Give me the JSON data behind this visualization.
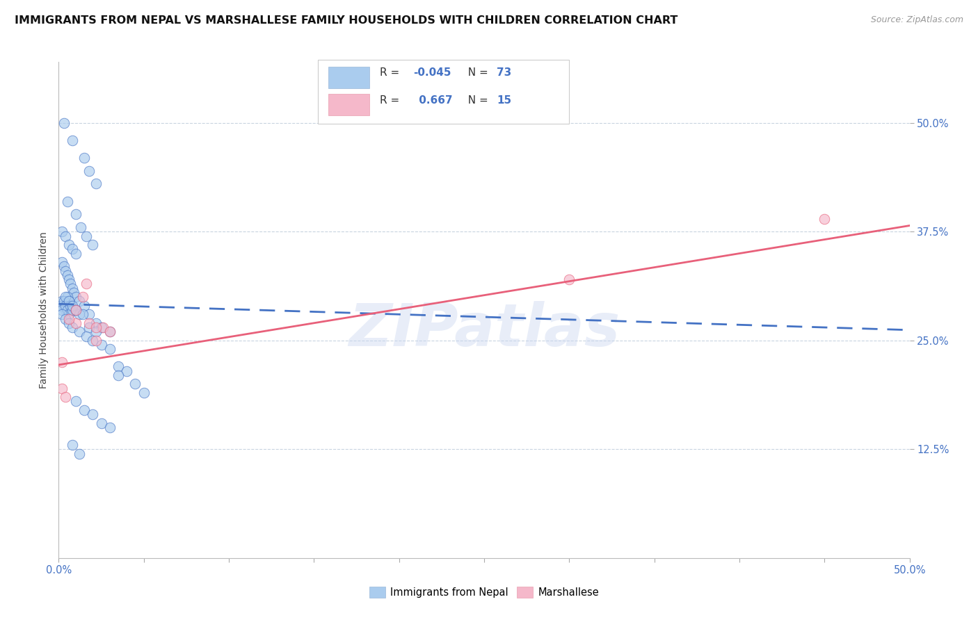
{
  "title": "IMMIGRANTS FROM NEPAL VS MARSHALLESE FAMILY HOUSEHOLDS WITH CHILDREN CORRELATION CHART",
  "source": "Source: ZipAtlas.com",
  "ylabel": "Family Households with Children",
  "ytick_labels": [
    "50.0%",
    "37.5%",
    "25.0%",
    "12.5%"
  ],
  "ytick_values": [
    0.5,
    0.375,
    0.25,
    0.125
  ],
  "xlim": [
    0.0,
    0.5
  ],
  "ylim": [
    0.0,
    0.57
  ],
  "legend_label1": "Immigrants from Nepal",
  "legend_label2": "Marshallese",
  "r1_text": "-0.045",
  "n1_text": "73",
  "r2_text": "0.667",
  "n2_text": "15",
  "color_blue": "#aaccee",
  "color_pink": "#f5b8ca",
  "line_blue": "#4472c4",
  "line_pink": "#e8607a",
  "nepal_x": [
    0.003,
    0.008,
    0.015,
    0.018,
    0.022,
    0.005,
    0.01,
    0.013,
    0.016,
    0.02,
    0.002,
    0.004,
    0.006,
    0.008,
    0.01,
    0.002,
    0.003,
    0.004,
    0.005,
    0.006,
    0.007,
    0.008,
    0.009,
    0.01,
    0.012,
    0.002,
    0.003,
    0.004,
    0.005,
    0.006,
    0.001,
    0.002,
    0.003,
    0.004,
    0.005,
    0.006,
    0.007,
    0.008,
    0.01,
    0.012,
    0.015,
    0.018,
    0.022,
    0.025,
    0.03,
    0.004,
    0.006,
    0.008,
    0.01,
    0.014,
    0.018,
    0.022,
    0.002,
    0.004,
    0.006,
    0.008,
    0.012,
    0.016,
    0.02,
    0.025,
    0.03,
    0.035,
    0.04,
    0.045,
    0.05,
    0.01,
    0.015,
    0.02,
    0.025,
    0.03,
    0.008,
    0.012,
    0.035
  ],
  "nepal_y": [
    0.5,
    0.48,
    0.46,
    0.445,
    0.43,
    0.41,
    0.395,
    0.38,
    0.37,
    0.36,
    0.375,
    0.37,
    0.36,
    0.355,
    0.35,
    0.34,
    0.335,
    0.33,
    0.325,
    0.32,
    0.315,
    0.31,
    0.305,
    0.3,
    0.295,
    0.295,
    0.29,
    0.285,
    0.3,
    0.295,
    0.29,
    0.285,
    0.295,
    0.29,
    0.285,
    0.28,
    0.29,
    0.285,
    0.285,
    0.28,
    0.29,
    0.28,
    0.27,
    0.265,
    0.26,
    0.3,
    0.295,
    0.29,
    0.285,
    0.28,
    0.265,
    0.26,
    0.28,
    0.275,
    0.27,
    0.265,
    0.26,
    0.255,
    0.25,
    0.245,
    0.24,
    0.22,
    0.215,
    0.2,
    0.19,
    0.18,
    0.17,
    0.165,
    0.155,
    0.15,
    0.13,
    0.12,
    0.21
  ],
  "marsh_x": [
    0.002,
    0.004,
    0.01,
    0.014,
    0.018,
    0.022,
    0.026,
    0.002,
    0.006,
    0.01,
    0.016,
    0.022,
    0.03,
    0.3,
    0.45
  ],
  "marsh_y": [
    0.195,
    0.185,
    0.27,
    0.3,
    0.27,
    0.25,
    0.265,
    0.225,
    0.275,
    0.285,
    0.315,
    0.265,
    0.26,
    0.32,
    0.39
  ],
  "nepal_line_x0": 0.0,
  "nepal_line_x1": 0.5,
  "nepal_line_y0": 0.292,
  "nepal_line_y1": 0.262,
  "marsh_line_x0": 0.0,
  "marsh_line_x1": 0.5,
  "marsh_line_y0": 0.222,
  "marsh_line_y1": 0.382,
  "watermark": "ZIPatlas",
  "background_color": "#ffffff",
  "grid_color": "#c8d4e0",
  "title_fontsize": 11.5,
  "label_fontsize": 10,
  "tick_fontsize": 10.5
}
